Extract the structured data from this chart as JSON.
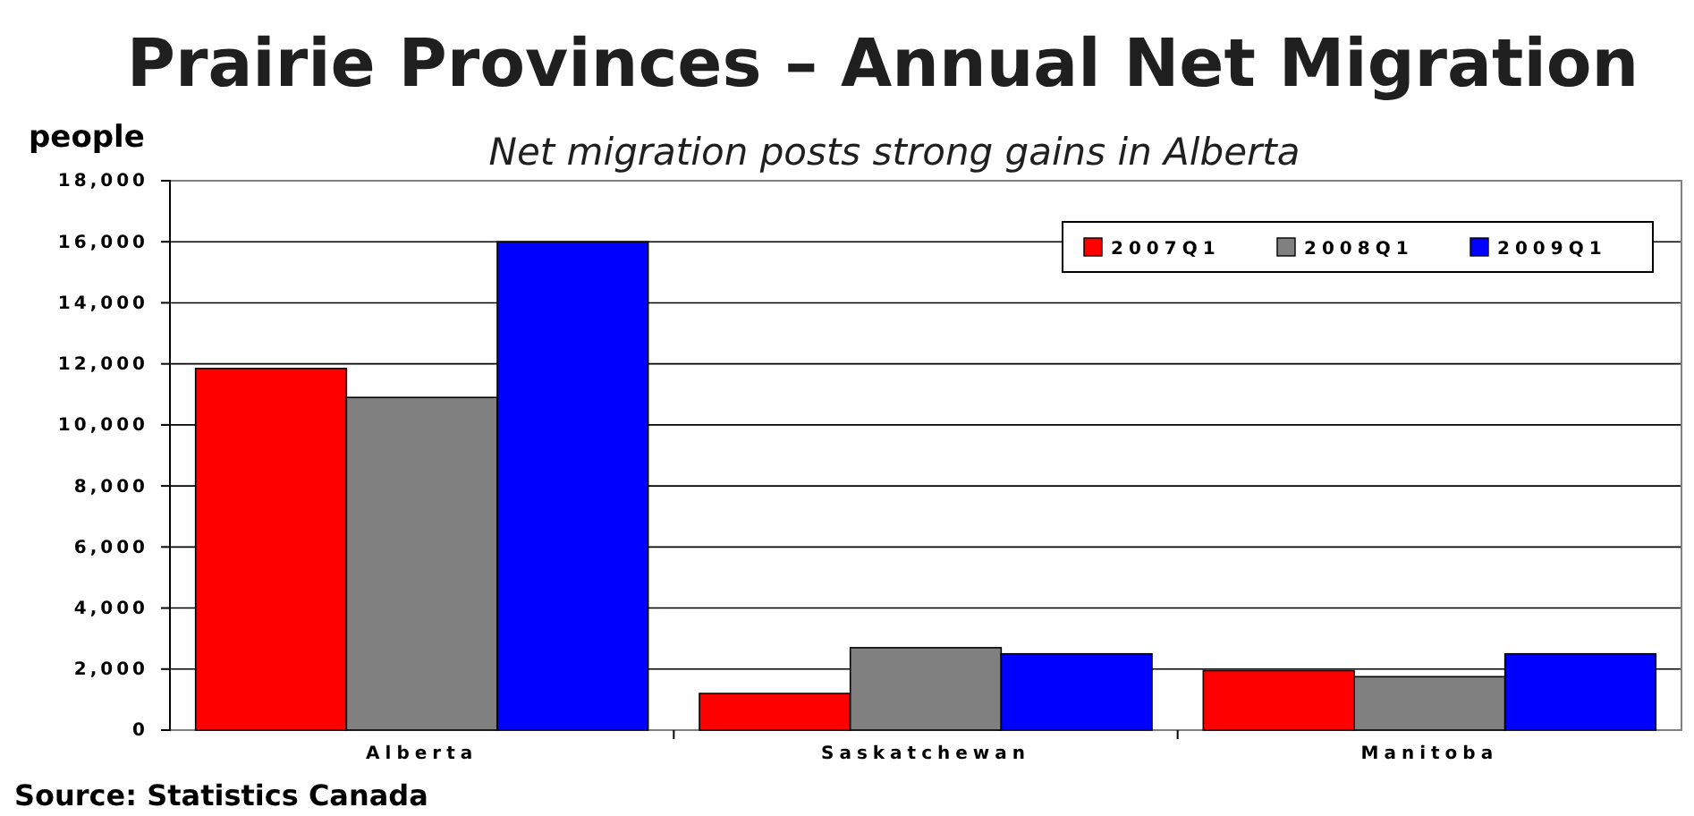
{
  "chart_data": {
    "type": "bar",
    "title": "Prairie Provinces – Annual Net Migration",
    "subtitle": "Net migration posts strong gains in Alberta",
    "ylabel": "people",
    "categories": [
      "Alberta",
      "Saskatchewan",
      "Manitoba"
    ],
    "series": [
      {
        "name": "2007Q1",
        "color": "#ff0000",
        "values": [
          11850,
          1200,
          1950
        ]
      },
      {
        "name": "2008Q1",
        "color": "#808080",
        "values": [
          10900,
          2700,
          1750
        ]
      },
      {
        "name": "2009Q1",
        "color": "#0000ff",
        "values": [
          16000,
          2500,
          2500
        ]
      }
    ],
    "ylim": [
      0,
      18000
    ],
    "yticks": [
      {
        "value": 0,
        "label": "0"
      },
      {
        "value": 2000,
        "label": "2,000"
      },
      {
        "value": 4000,
        "label": "4,000"
      },
      {
        "value": 6000,
        "label": "6,000"
      },
      {
        "value": 8000,
        "label": "8,000"
      },
      {
        "value": 10000,
        "label": "10,000"
      },
      {
        "value": 12000,
        "label": "12,000"
      },
      {
        "value": 14000,
        "label": "14,000"
      },
      {
        "value": 16000,
        "label": "16,000"
      },
      {
        "value": 18000,
        "label": "18,000"
      }
    ],
    "grid": "y",
    "legend": "top right",
    "annotations": [
      "Source: Statistics Canada"
    ]
  }
}
